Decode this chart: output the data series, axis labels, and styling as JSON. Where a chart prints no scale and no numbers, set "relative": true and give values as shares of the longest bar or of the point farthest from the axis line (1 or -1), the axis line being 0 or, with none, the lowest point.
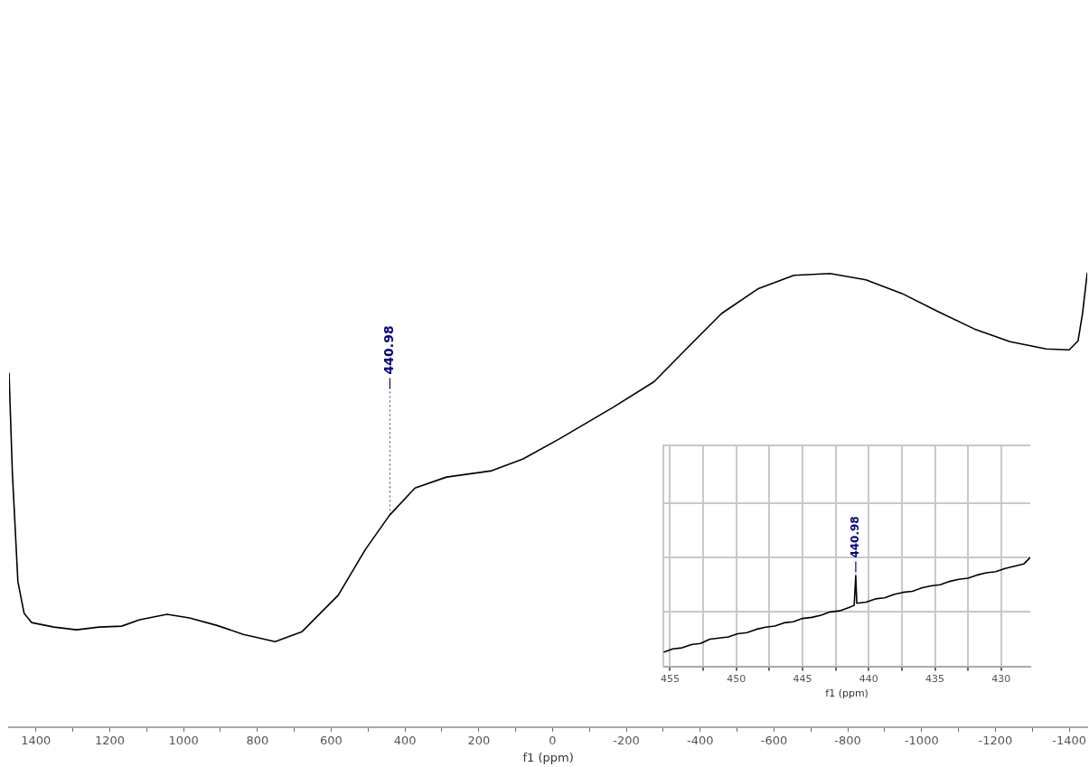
{
  "chart_data": [
    {
      "type": "line",
      "xlabel": "f1 (ppm)",
      "relative": true,
      "tick_labels": "x",
      "grid": false,
      "legend": false,
      "marker": "none",
      "line_style": "solid",
      "xlim": [
        1473,
        -1449
      ],
      "xticks": [
        1400,
        {
          "value": 1300,
          "label": null
        },
        1200,
        {
          "value": 1100,
          "label": null
        },
        1000,
        {
          "value": 900,
          "label": null
        },
        800,
        {
          "value": 700,
          "label": null
        },
        600,
        {
          "value": 500,
          "label": null
        },
        400,
        {
          "value": 300,
          "label": null
        },
        200,
        {
          "value": 100,
          "label": null
        },
        0,
        {
          "value": -100,
          "label": null
        },
        -200,
        {
          "value": -300,
          "label": null
        },
        -400,
        {
          "value": -500,
          "label": null
        },
        -600,
        {
          "value": -700,
          "label": null
        },
        -800,
        {
          "value": -900,
          "label": null
        },
        -1000,
        {
          "value": -1100,
          "label": null
        },
        -1200,
        {
          "value": -1300,
          "label": null
        },
        -1400
      ],
      "series": [
        {
          "color": "#000000",
          "x": [
            1473,
            1464,
            1449,
            1432,
            1412,
            1351,
            1290,
            1229,
            1168,
            1119,
            1045,
            984,
            911,
            838,
            752,
            679,
            581,
            508,
            442,
            373,
            288,
            165,
            80,
            -18,
            -165,
            -275,
            -360,
            -458,
            -556,
            -654,
            -752,
            -849,
            -947,
            -1045,
            -1143,
            -1240,
            -1338,
            -1400,
            -1424,
            -1436,
            -1449
          ],
          "values": [
            0.78,
            0.56,
            0.32,
            0.25,
            0.23,
            0.22,
            0.214,
            0.22,
            0.222,
            0.236,
            0.248,
            0.24,
            0.224,
            0.204,
            0.188,
            0.21,
            0.29,
            0.39,
            0.466,
            0.526,
            0.55,
            0.564,
            0.59,
            0.634,
            0.704,
            0.76,
            0.83,
            0.91,
            0.964,
            0.994,
            0.998,
            0.984,
            0.954,
            0.914,
            0.876,
            0.848,
            0.832,
            0.83,
            0.85,
            0.91,
            1.0
          ]
        }
      ],
      "annotations": [
        {
          "text": "440.98",
          "x": 440.98,
          "y": 0.466
        }
      ]
    },
    {
      "type": "line",
      "xlabel": "f1 (ppm)",
      "relative": true,
      "tick_labels": "x",
      "grid": true,
      "legend": false,
      "marker": "none",
      "line_style": "solid",
      "xlim": [
        455.5,
        427.8
      ],
      "xticks": [
        455,
        {
          "value": 452.5,
          "label": null
        },
        450,
        {
          "value": 447.5,
          "label": null
        },
        445,
        {
          "value": 442.5,
          "label": null
        },
        440,
        {
          "value": 437.5,
          "label": null
        },
        435,
        {
          "value": 432.5,
          "label": null
        },
        430
      ],
      "series": [
        {
          "color": "#000000",
          "x": [
            455.5,
            454.8,
            454.1,
            453.4,
            452.7,
            452.0,
            451.3,
            450.6,
            449.9,
            449.2,
            448.5,
            447.8,
            447.1,
            446.4,
            445.7,
            445.0,
            444.3,
            443.6,
            442.9,
            442.2,
            441.5,
            441.1,
            440.98,
            440.9,
            440.2,
            439.5,
            438.8,
            438.1,
            437.4,
            436.7,
            436.0,
            435.3,
            434.6,
            433.9,
            433.2,
            432.5,
            431.8,
            431.1,
            430.4,
            429.7,
            429.0,
            428.3,
            427.8
          ],
          "values": [
            0.13,
            0.16,
            0.17,
            0.2,
            0.21,
            0.25,
            0.26,
            0.27,
            0.3,
            0.31,
            0.34,
            0.36,
            0.37,
            0.4,
            0.41,
            0.44,
            0.45,
            0.47,
            0.5,
            0.51,
            0.54,
            0.56,
            0.83,
            0.58,
            0.59,
            0.62,
            0.63,
            0.66,
            0.68,
            0.69,
            0.72,
            0.74,
            0.75,
            0.78,
            0.8,
            0.81,
            0.84,
            0.86,
            0.87,
            0.9,
            0.92,
            0.94,
            1.0
          ]
        }
      ],
      "annotations": [
        {
          "text": "440.98",
          "x": 440.98,
          "y": 0.83
        }
      ]
    }
  ]
}
